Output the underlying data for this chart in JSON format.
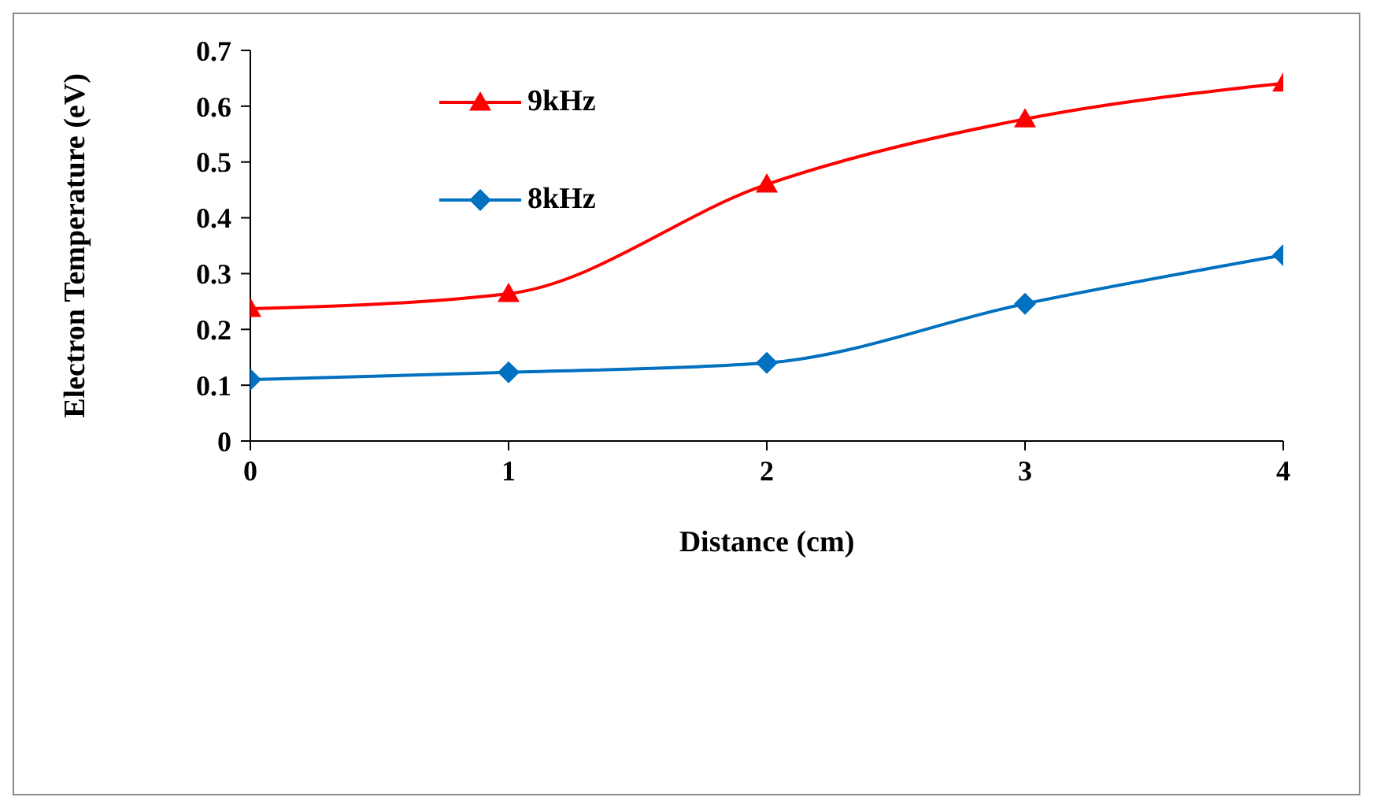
{
  "chart_data": {
    "type": "line",
    "xlabel": "Distance (cm)",
    "ylabel": "Electron Temperature (eV)",
    "x": [
      0,
      1,
      2,
      3,
      4
    ],
    "xlim": [
      0,
      4
    ],
    "xticks": [
      0,
      1,
      2,
      3,
      4
    ],
    "ylim": [
      0,
      0.7
    ],
    "yticks": [
      0,
      0.1,
      0.2,
      0.3,
      0.4,
      0.5,
      0.6,
      0.7
    ],
    "grid": false,
    "legend": "top left",
    "series": [
      {
        "name": "9kHz",
        "color": "#ff0000",
        "marker": "triangle",
        "values": [
          0.237,
          0.264,
          0.46,
          0.577,
          0.641
        ]
      },
      {
        "name": "8kHz",
        "color": "#0070c0",
        "marker": "diamond",
        "values": [
          0.11,
          0.123,
          0.14,
          0.246,
          0.333
        ]
      }
    ]
  }
}
